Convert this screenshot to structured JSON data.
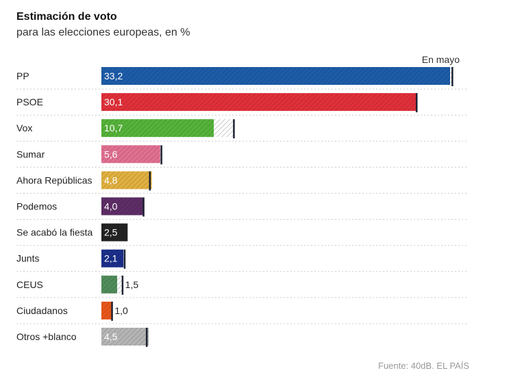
{
  "title": "Estimación de voto",
  "subtitle": "para las elecciones europeas, en %",
  "source": "Fuente: 40dB. EL PAÍS",
  "chart_data": {
    "type": "bar",
    "orientation": "horizontal",
    "title": "Estimación de voto",
    "subtitle": "para las elecciones europeas, en %",
    "marker_label": "En mayo",
    "categories": [
      "PP",
      "PSOE",
      "Vox",
      "Sumar",
      "Ahora Repúblicas",
      "Podemos",
      "Se acabó la fiesta",
      "Junts",
      "CEUS",
      "Ciudadanos",
      "Otros +blanco"
    ],
    "values": [
      33.2,
      30.1,
      10.7,
      5.6,
      4.8,
      4.0,
      2.5,
      2.1,
      1.5,
      1.0,
      4.5
    ],
    "value_labels": [
      "33,2",
      "30,1",
      "10,7",
      "5,6",
      "4,8",
      "4,0",
      "2,5",
      "2,1",
      "1,5",
      "1,0",
      "4,5"
    ],
    "en_mayo": [
      33.4,
      30.0,
      12.6,
      5.7,
      4.6,
      4.0,
      null,
      2.2,
      2.0,
      1.0,
      4.3
    ],
    "colors": [
      "#1d5ca8",
      "#e0303a",
      "#55b23a",
      "#e07090",
      "#e0b040",
      "#5e2d66",
      "#222222",
      "#1b2f8a",
      "#4f8c5a",
      "#e8561a",
      "#b4b4b4"
    ],
    "xlim": [
      0,
      33.5
    ],
    "grid": false
  }
}
